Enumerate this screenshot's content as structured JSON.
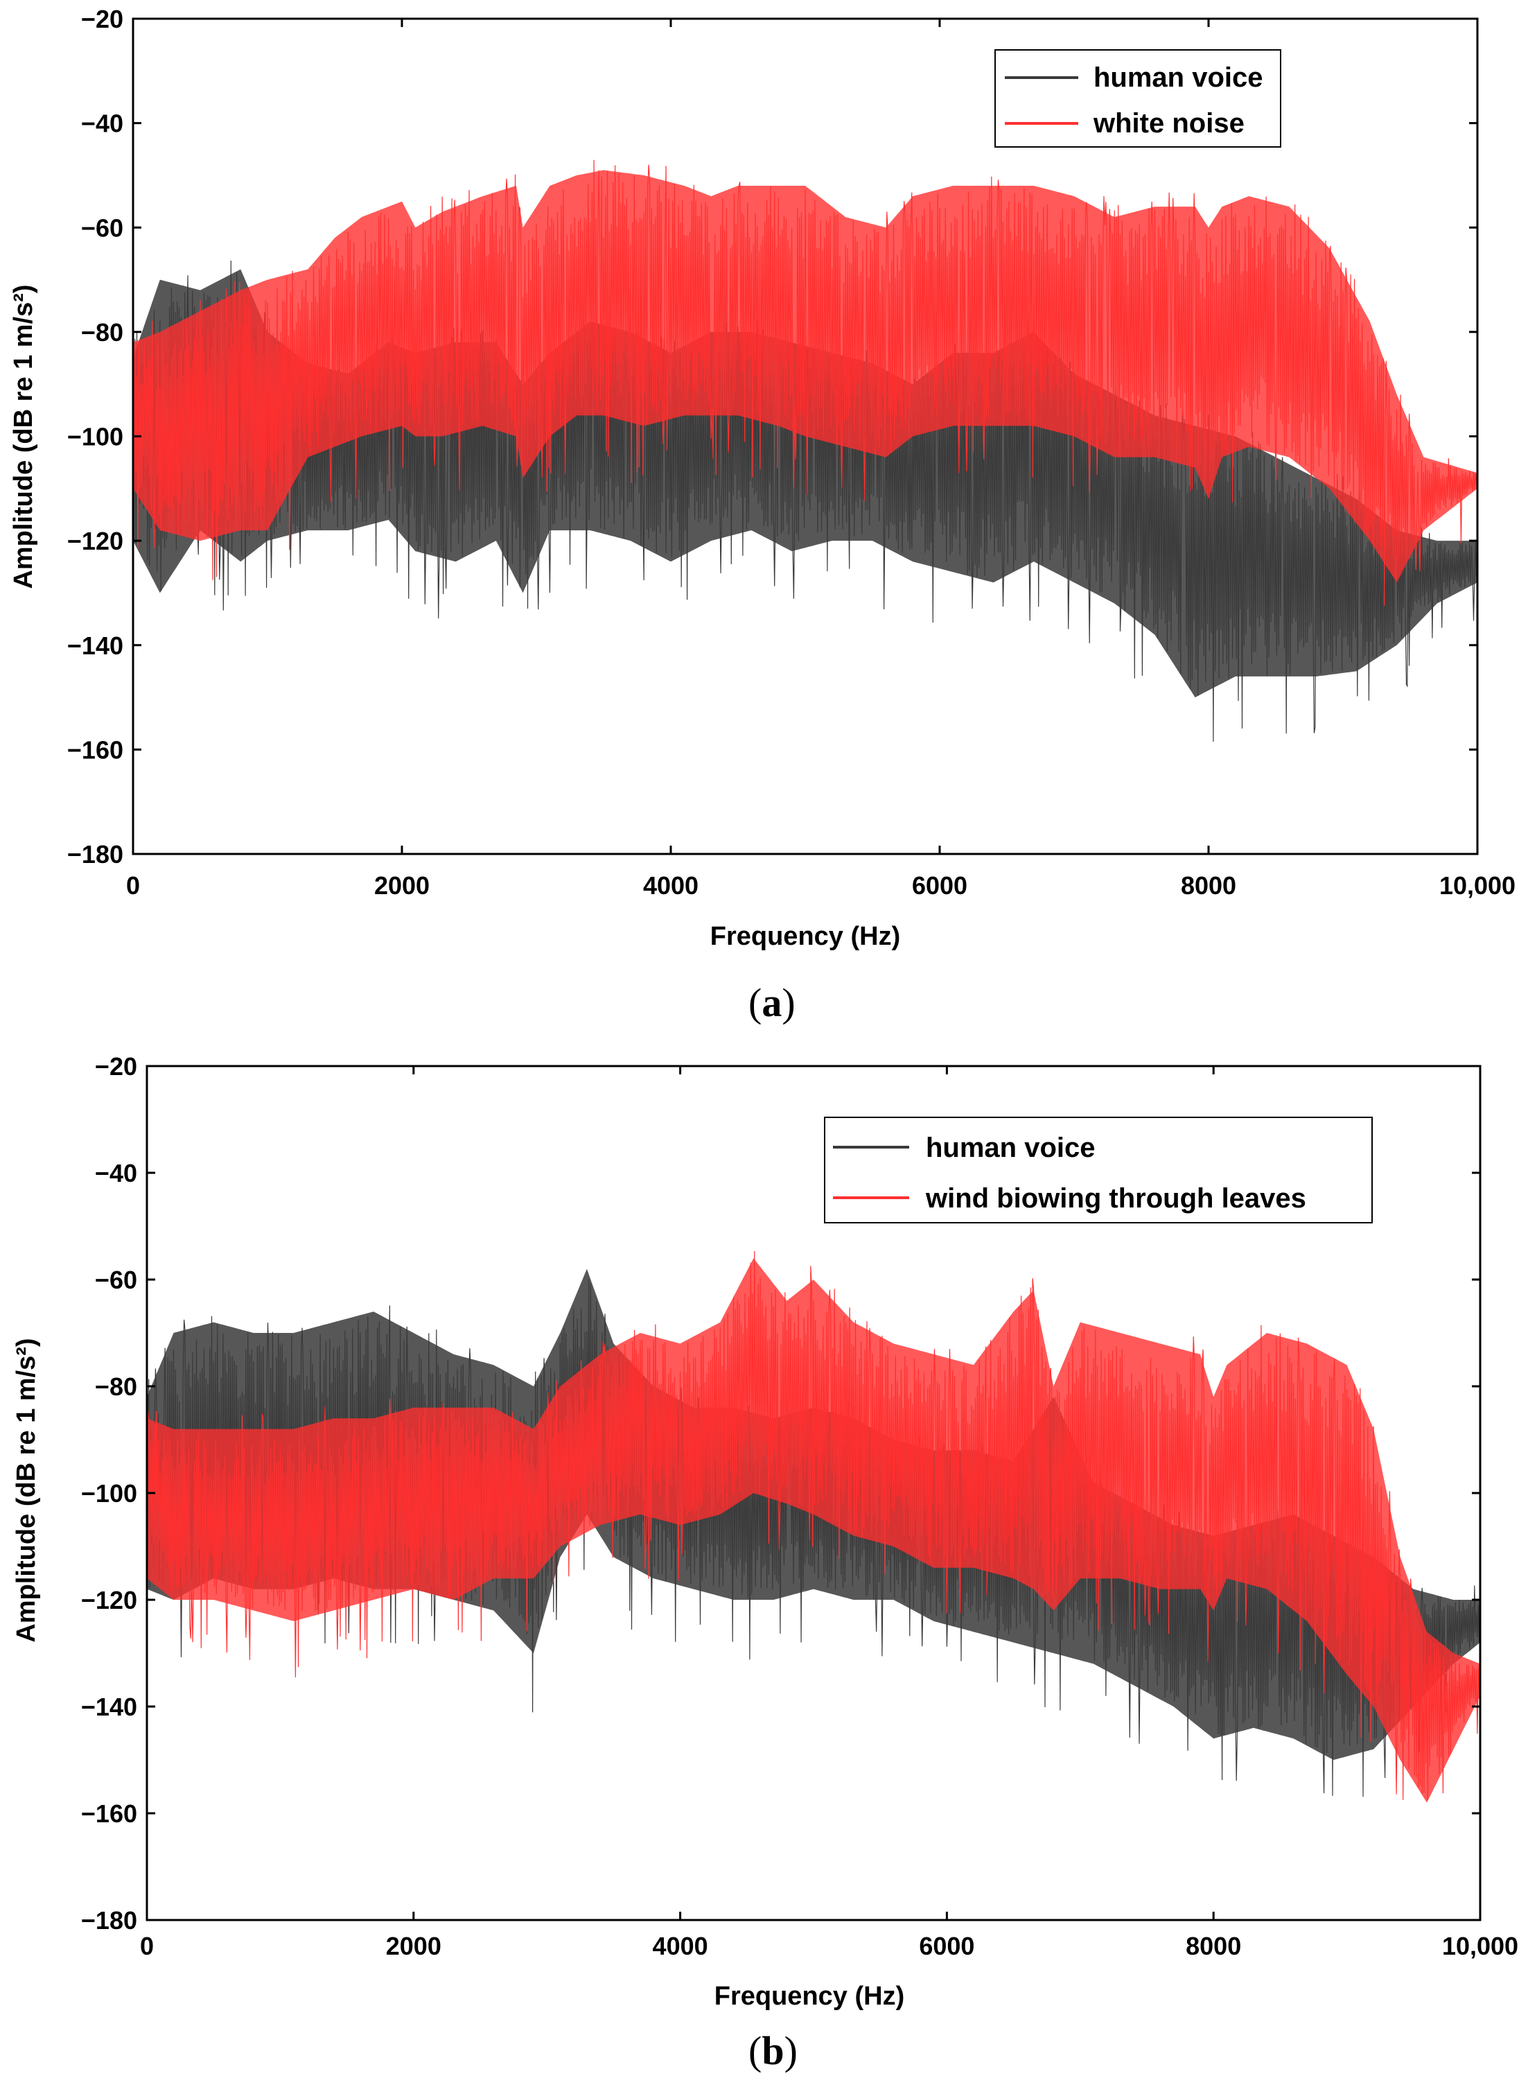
{
  "chart_data": [
    {
      "type": "line",
      "panel_label": "a",
      "panel_label_open": "(",
      "panel_label_close": ")",
      "xlabel": "Frequency (Hz)",
      "ylabel": "Amplitude (dB re 1 m/s²)",
      "xlim": [
        0,
        10000
      ],
      "ylim": [
        -180,
        -20
      ],
      "xticks": [
        0,
        2000,
        4000,
        6000,
        8000,
        10000
      ],
      "xtick_labels": [
        "0",
        "2000",
        "4000",
        "6000",
        "8000",
        "10,000"
      ],
      "yticks": [
        -20,
        -40,
        -60,
        -80,
        -100,
        -120,
        -140,
        -160,
        -180
      ],
      "ytick_labels": [
        "−20",
        "−40",
        "−60",
        "−80",
        "−100",
        "−120",
        "−140",
        "−160",
        "−180"
      ],
      "legend_position": "top-right",
      "series": [
        {
          "name": "human voice",
          "color": "#3a3a3a",
          "x": [
            0,
            200,
            500,
            800,
            1000,
            1300,
            1600,
            1900,
            2100,
            2400,
            2700,
            2900,
            3100,
            3400,
            3700,
            4000,
            4300,
            4600,
            4900,
            5200,
            5500,
            5800,
            6100,
            6400,
            6700,
            7000,
            7300,
            7600,
            7900,
            8200,
            8500,
            8800,
            9100,
            9400,
            9700,
            10000
          ],
          "upper": [
            -85,
            -70,
            -72,
            -68,
            -80,
            -86,
            -88,
            -82,
            -84,
            -82,
            -82,
            -90,
            -84,
            -78,
            -80,
            -84,
            -80,
            -80,
            -82,
            -84,
            -86,
            -90,
            -84,
            -84,
            -80,
            -88,
            -92,
            -96,
            -98,
            -100,
            -104,
            -108,
            -112,
            -118,
            -120,
            -120
          ],
          "lower": [
            -120,
            -130,
            -118,
            -124,
            -120,
            -118,
            -118,
            -116,
            -122,
            -124,
            -120,
            -130,
            -118,
            -118,
            -120,
            -124,
            -120,
            -118,
            -122,
            -120,
            -120,
            -124,
            -126,
            -128,
            -124,
            -128,
            -132,
            -138,
            -150,
            -146,
            -146,
            -146,
            -145,
            -140,
            -132,
            -128
          ]
        },
        {
          "name": "white noise",
          "color": "#ff3030",
          "x": [
            0,
            200,
            500,
            800,
            1000,
            1300,
            1500,
            1700,
            2000,
            2100,
            2300,
            2600,
            2850,
            2900,
            3100,
            3300,
            3500,
            3800,
            4100,
            4300,
            4500,
            4800,
            5000,
            5300,
            5600,
            5800,
            6100,
            6400,
            6700,
            7000,
            7300,
            7600,
            7900,
            8000,
            8100,
            8300,
            8600,
            8900,
            9200,
            9400,
            9600,
            10000
          ],
          "upper": [
            -82,
            -80,
            -76,
            -72,
            -70,
            -68,
            -62,
            -58,
            -55,
            -60,
            -57,
            -54,
            -52,
            -60,
            -52,
            -50,
            -49,
            -50,
            -52,
            -54,
            -52,
            -52,
            -52,
            -58,
            -60,
            -54,
            -52,
            -52,
            -52,
            -54,
            -58,
            -56,
            -56,
            -60,
            -56,
            -54,
            -56,
            -64,
            -78,
            -92,
            -104,
            -107
          ],
          "lower": [
            -110,
            -118,
            -120,
            -118,
            -118,
            -104,
            -102,
            -100,
            -98,
            -100,
            -100,
            -98,
            -100,
            -108,
            -100,
            -96,
            -96,
            -98,
            -96,
            -96,
            -96,
            -98,
            -100,
            -102,
            -104,
            -100,
            -98,
            -98,
            -98,
            -100,
            -104,
            -104,
            -106,
            -112,
            -104,
            -102,
            -104,
            -110,
            -120,
            -128,
            -118,
            -110
          ]
        }
      ]
    },
    {
      "type": "line",
      "panel_label": "b",
      "panel_label_open": "(",
      "panel_label_close": ")",
      "xlabel": "Frequency (Hz)",
      "ylabel": "Amplitude (dB re 1 m/s²)",
      "xlim": [
        0,
        10000
      ],
      "ylim": [
        -180,
        -20
      ],
      "xticks": [
        0,
        2000,
        4000,
        6000,
        8000,
        10000
      ],
      "xtick_labels": [
        "0",
        "2000",
        "4000",
        "6000",
        "8000",
        "10,000"
      ],
      "yticks": [
        -20,
        -40,
        -60,
        -80,
        -100,
        -120,
        -140,
        -160,
        -180
      ],
      "ytick_labels": [
        "−20",
        "−40",
        "−60",
        "−80",
        "−100",
        "−120",
        "−140",
        "−160",
        "−180"
      ],
      "legend_position": "top-right",
      "series": [
        {
          "name": "human voice",
          "color": "#3a3a3a",
          "x": [
            0,
            200,
            500,
            800,
            1100,
            1400,
            1700,
            2000,
            2300,
            2600,
            2900,
            3100,
            3300,
            3500,
            3800,
            4100,
            4400,
            4700,
            5000,
            5300,
            5600,
            5900,
            6200,
            6500,
            6800,
            7100,
            7400,
            7700,
            8000,
            8300,
            8600,
            8900,
            9200,
            9500,
            9800,
            10000
          ],
          "upper": [
            -82,
            -70,
            -68,
            -70,
            -70,
            -68,
            -66,
            -70,
            -74,
            -76,
            -80,
            -70,
            -58,
            -72,
            -80,
            -84,
            -84,
            -86,
            -84,
            -86,
            -90,
            -92,
            -92,
            -94,
            -82,
            -98,
            -102,
            -106,
            -108,
            -106,
            -104,
            -108,
            -112,
            -118,
            -120,
            -120
          ],
          "lower": [
            -118,
            -120,
            -116,
            -118,
            -118,
            -116,
            -118,
            -118,
            -120,
            -122,
            -130,
            -112,
            -104,
            -112,
            -116,
            -118,
            -120,
            -120,
            -118,
            -120,
            -120,
            -124,
            -126,
            -128,
            -130,
            -132,
            -136,
            -140,
            -146,
            -144,
            -146,
            -150,
            -148,
            -140,
            -132,
            -128
          ]
        },
        {
          "name": "wind biowing through leaves",
          "color": "#ff3030",
          "x": [
            0,
            200,
            500,
            800,
            1100,
            1400,
            1700,
            2000,
            2300,
            2600,
            2900,
            3100,
            3400,
            3700,
            4000,
            4300,
            4550,
            4800,
            5000,
            5300,
            5600,
            5900,
            6200,
            6500,
            6650,
            6800,
            7000,
            7300,
            7600,
            7900,
            8000,
            8100,
            8400,
            8700,
            9000,
            9200,
            9400,
            9600,
            9800,
            10000
          ],
          "upper": [
            -86,
            -88,
            -88,
            -88,
            -88,
            -86,
            -86,
            -84,
            -84,
            -84,
            -88,
            -80,
            -74,
            -70,
            -72,
            -68,
            -56,
            -64,
            -60,
            -68,
            -72,
            -74,
            -76,
            -66,
            -62,
            -80,
            -68,
            -70,
            -72,
            -74,
            -82,
            -76,
            -70,
            -72,
            -76,
            -88,
            -112,
            -126,
            -130,
            -132
          ],
          "lower": [
            -116,
            -120,
            -120,
            -122,
            -124,
            -122,
            -120,
            -118,
            -120,
            -116,
            -116,
            -110,
            -106,
            -104,
            -106,
            -104,
            -100,
            -102,
            -104,
            -108,
            -110,
            -114,
            -114,
            -116,
            -118,
            -122,
            -116,
            -116,
            -118,
            -118,
            -122,
            -116,
            -118,
            -124,
            -134,
            -140,
            -150,
            -158,
            -148,
            -138
          ]
        }
      ]
    }
  ]
}
